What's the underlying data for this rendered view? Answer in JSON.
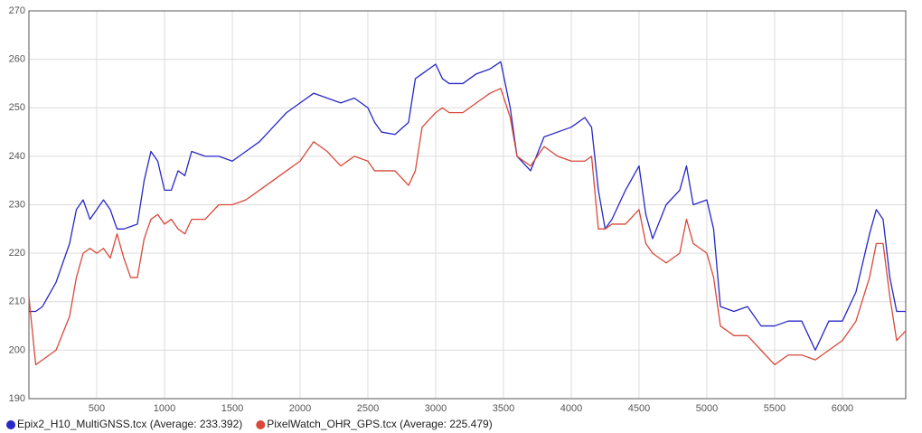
{
  "chart_data": {
    "type": "line",
    "x": [
      0,
      50,
      100,
      200,
      300,
      350,
      400,
      450,
      500,
      550,
      600,
      650,
      700,
      750,
      800,
      850,
      900,
      950,
      1000,
      1050,
      1100,
      1150,
      1200,
      1300,
      1400,
      1500,
      1600,
      1700,
      1800,
      1900,
      2000,
      2100,
      2200,
      2300,
      2400,
      2500,
      2550,
      2600,
      2700,
      2800,
      2850,
      2900,
      3000,
      3050,
      3100,
      3200,
      3300,
      3400,
      3480,
      3550,
      3600,
      3700,
      3800,
      3900,
      4000,
      4100,
      4150,
      4200,
      4250,
      4300,
      4400,
      4500,
      4550,
      4600,
      4700,
      4800,
      4850,
      4900,
      5000,
      5050,
      5100,
      5200,
      5300,
      5400,
      5500,
      5600,
      5700,
      5800,
      5900,
      6000,
      6100,
      6200,
      6250,
      6300,
      6350,
      6400,
      6467
    ],
    "series": [
      {
        "name": "Epix2_H10_MultiGNSS.tcx (Average: 233.392)",
        "color": "#2727c8",
        "values": [
          208,
          208,
          209,
          214,
          222,
          229,
          231,
          227,
          229,
          231,
          229,
          225,
          225,
          225.5,
          226,
          235,
          241,
          239,
          233,
          233,
          237,
          236,
          241,
          240,
          240,
          239,
          241,
          243,
          246,
          249,
          251,
          253,
          252,
          251,
          252,
          250,
          247,
          245,
          244.5,
          247,
          256,
          257,
          259,
          256,
          255,
          255,
          257,
          258,
          259.5,
          250,
          240,
          237,
          244,
          245,
          246,
          248,
          246,
          233,
          225,
          227,
          233,
          238,
          228,
          223,
          230,
          233,
          238,
          230,
          231,
          225,
          209,
          208,
          209,
          205,
          205,
          206,
          206,
          200,
          206,
          206,
          212,
          224,
          229,
          227,
          215,
          208,
          208
        ]
      },
      {
        "name": "PixelWatch_OHR_GPS.tcx (Average: 225.479)",
        "color": "#d9483a",
        "values": [
          211,
          197,
          198,
          200,
          207,
          215,
          220,
          221,
          220,
          221,
          219,
          224,
          219,
          215,
          215,
          223,
          227,
          228,
          226,
          227,
          225,
          224,
          227,
          227,
          230,
          230,
          231,
          233,
          235,
          237,
          239,
          243,
          241,
          238,
          240,
          239,
          237,
          237,
          237,
          234,
          237,
          246,
          249,
          250,
          249,
          249,
          251,
          253,
          254,
          248,
          240,
          238,
          242,
          240,
          239,
          239,
          240,
          225,
          225,
          226,
          226,
          229,
          222,
          220,
          218,
          220,
          227,
          222,
          220,
          215,
          205,
          203,
          203,
          200,
          197,
          199,
          199,
          198,
          200,
          202,
          206,
          215,
          222,
          222,
          211,
          202,
          204
        ]
      }
    ],
    "xlim": [
      0,
      6467
    ],
    "ylim": [
      190,
      270
    ],
    "xticks": [
      500,
      1000,
      1500,
      2000,
      2500,
      3000,
      3500,
      4000,
      4500,
      5000,
      5500,
      6000
    ],
    "yticks": [
      190,
      200,
      210,
      220,
      230,
      240,
      250,
      260,
      270
    ],
    "grid": true,
    "legend": "bottom"
  }
}
